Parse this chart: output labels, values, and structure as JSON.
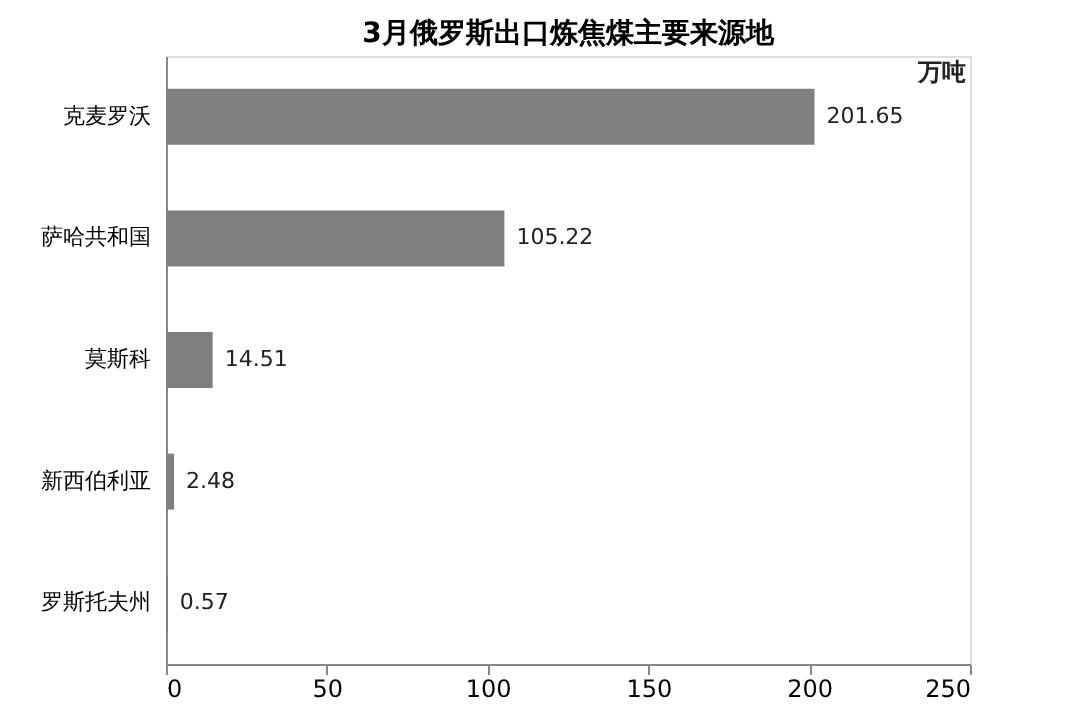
{
  "chart_data": {
    "type": "bar",
    "orientation": "horizontal",
    "title": "3月俄罗斯出口炼焦煤主要来源地",
    "categories": [
      "克麦罗沃",
      "萨哈共和国",
      "莫斯科",
      "新西伯利亚",
      "罗斯托夫州"
    ],
    "values": [
      201.65,
      105.22,
      14.51,
      2.48,
      0.57
    ],
    "color": "#7f7f7f",
    "xlim": [
      0,
      250
    ],
    "xticks": [
      0,
      50,
      100,
      150,
      200,
      250
    ],
    "grid": false,
    "data_labels": true,
    "annotations": [
      "万吨"
    ]
  }
}
